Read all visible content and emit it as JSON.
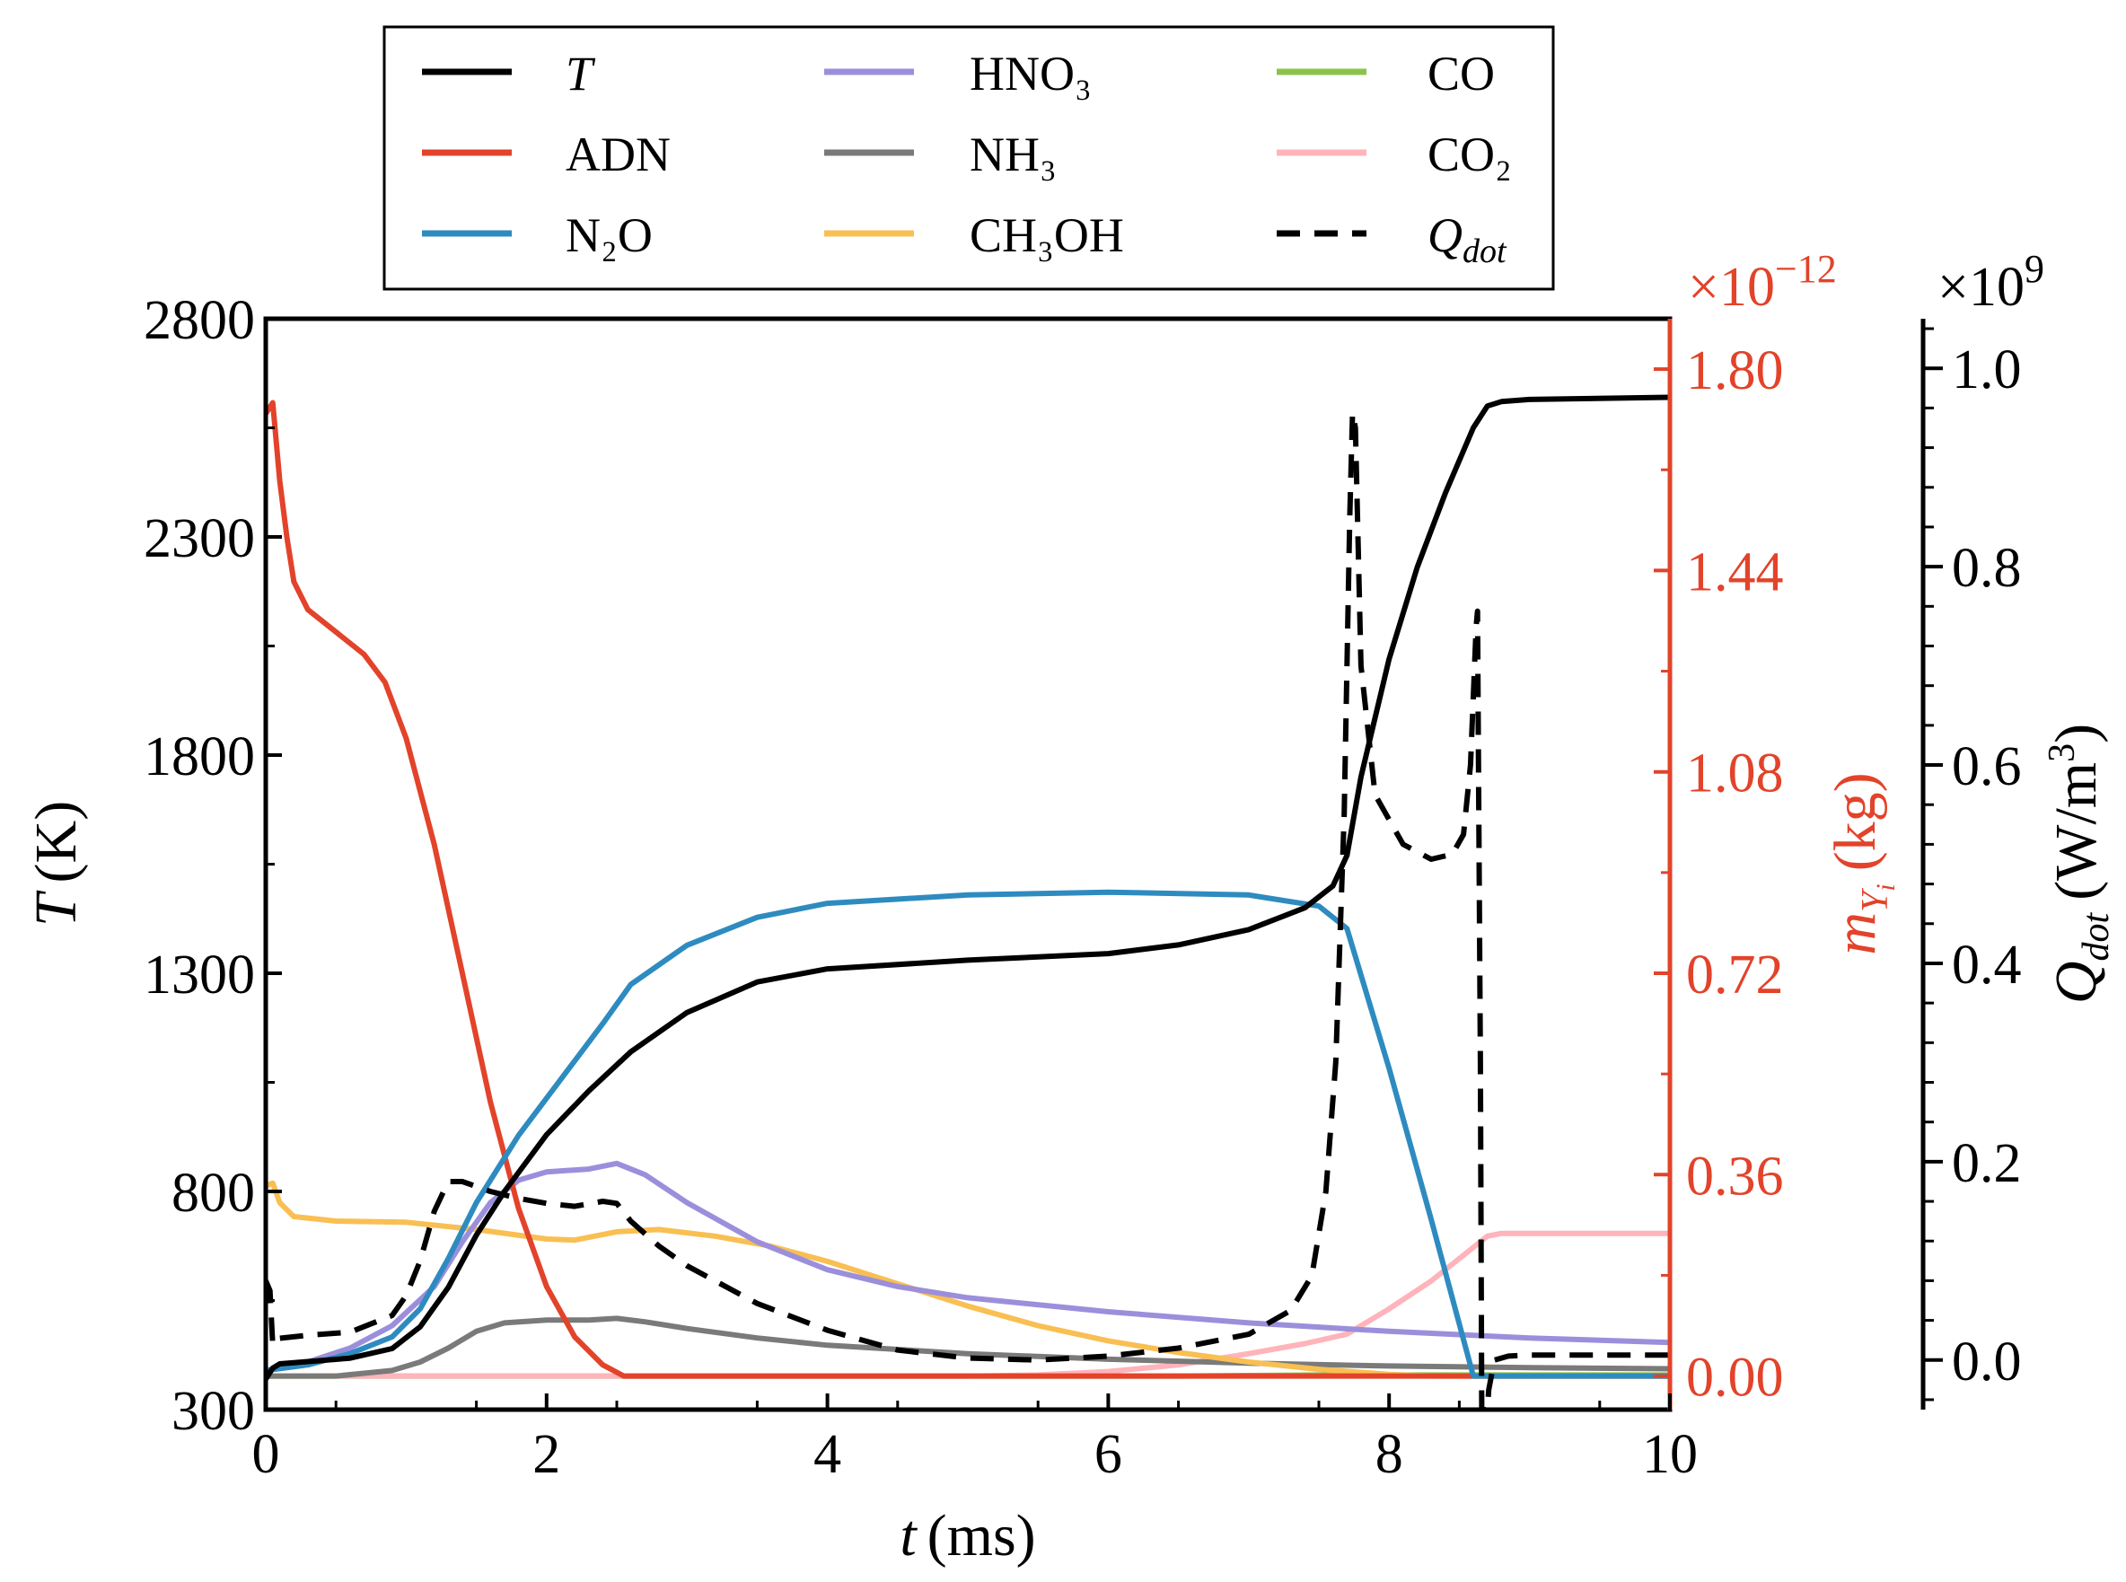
{
  "chart_data": {
    "type": "line",
    "xlabel_var": "t",
    "xlabel_unit": "(ms)",
    "ylabel_left_var": "T",
    "ylabel_left_unit": "(K)",
    "ylabel_mid_var": "m",
    "ylabel_mid_sub": "Y",
    "ylabel_mid_subsub": "i",
    "ylabel_mid_unit": "(kg)",
    "ylabel_right_var": "Q",
    "ylabel_right_sub": "dot",
    "ylabel_right_unit": "(W/m",
    "ylabel_right_sup": "3",
    "ylabel_right_close": ")",
    "multiplier_mid_base": "×10",
    "multiplier_mid_exp": "−12",
    "multiplier_right_base": "×10",
    "multiplier_right_exp": "9",
    "xlim": [
      0,
      10
    ],
    "ylim_left": [
      300,
      2800
    ],
    "ylim_mid": [
      -0.06,
      1.89
    ],
    "ylim_right": [
      -0.05,
      1.05
    ],
    "x_ticks": [
      "0",
      "2",
      "4",
      "6",
      "8",
      "10"
    ],
    "y_left_ticks": [
      "300",
      "800",
      "1300",
      "1800",
      "2300",
      "2800"
    ],
    "y_mid_ticks": [
      "0.00",
      "0.36",
      "0.72",
      "1.08",
      "1.44",
      "1.80"
    ],
    "y_right_ticks": [
      "0.0",
      "0.2",
      "0.4",
      "0.6",
      "0.8",
      "1.0"
    ],
    "colors": {
      "T": "#000000",
      "ADN": "#e2432a",
      "N2O": "#2e8bc0",
      "HNO3": "#9b8fdc",
      "NH3": "#7a7a7a",
      "CH3OH": "#f9bf52",
      "CO": "#8bc34a",
      "CO2": "#ffb3ba",
      "Qdot": "#000000",
      "mid_axis": "#e2432a"
    },
    "legend": [
      {
        "key": "T",
        "label": "T",
        "italic": true,
        "dashed": false
      },
      {
        "key": "ADN",
        "label": "ADN",
        "italic": false,
        "dashed": false
      },
      {
        "key": "N2O",
        "label": "N₂O",
        "italic": false,
        "dashed": false
      },
      {
        "key": "HNO3",
        "label": "HNO₃",
        "italic": false,
        "dashed": false
      },
      {
        "key": "NH3",
        "label": "NH₃",
        "italic": false,
        "dashed": false
      },
      {
        "key": "CH3OH",
        "label": "CH₃OH",
        "italic": false,
        "dashed": false
      },
      {
        "key": "CO",
        "label": "CO",
        "italic": false,
        "dashed": false
      },
      {
        "key": "CO2",
        "label": "CO₂",
        "italic": false,
        "dashed": false
      },
      {
        "key": "Qdot",
        "label": "Q",
        "label_sub": "dot",
        "italic": true,
        "dashed": true
      }
    ],
    "series": [
      {
        "name": "T",
        "axis": "left",
        "points": [
          [
            0,
            370
          ],
          [
            0.05,
            395
          ],
          [
            0.1,
            405
          ],
          [
            0.3,
            410
          ],
          [
            0.6,
            418
          ],
          [
            0.9,
            440
          ],
          [
            1.1,
            490
          ],
          [
            1.3,
            580
          ],
          [
            1.5,
            700
          ],
          [
            1.7,
            800
          ],
          [
            2.0,
            930
          ],
          [
            2.3,
            1030
          ],
          [
            2.6,
            1120
          ],
          [
            3.0,
            1210
          ],
          [
            3.5,
            1280
          ],
          [
            4.0,
            1310
          ],
          [
            5.0,
            1330
          ],
          [
            6.0,
            1345
          ],
          [
            6.5,
            1365
          ],
          [
            7.0,
            1400
          ],
          [
            7.4,
            1450
          ],
          [
            7.6,
            1500
          ],
          [
            7.7,
            1570
          ],
          [
            7.8,
            1750
          ],
          [
            8.0,
            2020
          ],
          [
            8.2,
            2230
          ],
          [
            8.4,
            2400
          ],
          [
            8.6,
            2550
          ],
          [
            8.7,
            2600
          ],
          [
            8.8,
            2610
          ],
          [
            9.0,
            2615
          ],
          [
            10.0,
            2620
          ]
        ]
      },
      {
        "name": "ADN",
        "axis": "mid",
        "points": [
          [
            0,
            1.72
          ],
          [
            0.05,
            1.74
          ],
          [
            0.1,
            1.6
          ],
          [
            0.15,
            1.5
          ],
          [
            0.2,
            1.42
          ],
          [
            0.3,
            1.37
          ],
          [
            0.5,
            1.33
          ],
          [
            0.7,
            1.29
          ],
          [
            0.85,
            1.24
          ],
          [
            1.0,
            1.14
          ],
          [
            1.2,
            0.95
          ],
          [
            1.4,
            0.72
          ],
          [
            1.6,
            0.49
          ],
          [
            1.8,
            0.3
          ],
          [
            2.0,
            0.16
          ],
          [
            2.2,
            0.07
          ],
          [
            2.4,
            0.02
          ],
          [
            2.55,
            0.0
          ],
          [
            10,
            0.0
          ]
        ]
      },
      {
        "name": "N2O",
        "axis": "mid",
        "points": [
          [
            0,
            0.01
          ],
          [
            0.3,
            0.02
          ],
          [
            0.6,
            0.04
          ],
          [
            0.9,
            0.07
          ],
          [
            1.1,
            0.12
          ],
          [
            1.3,
            0.21
          ],
          [
            1.5,
            0.31
          ],
          [
            1.8,
            0.43
          ],
          [
            2.1,
            0.53
          ],
          [
            2.4,
            0.63
          ],
          [
            2.6,
            0.7
          ],
          [
            3.0,
            0.77
          ],
          [
            3.5,
            0.82
          ],
          [
            4.0,
            0.845
          ],
          [
            5.0,
            0.86
          ],
          [
            6.0,
            0.865
          ],
          [
            7.0,
            0.86
          ],
          [
            7.5,
            0.84
          ],
          [
            7.7,
            0.8
          ],
          [
            8.0,
            0.55
          ],
          [
            8.3,
            0.28
          ],
          [
            8.6,
            0.0
          ],
          [
            10,
            0.0
          ]
        ]
      },
      {
        "name": "HNO3",
        "axis": "mid",
        "points": [
          [
            0,
            0.01
          ],
          [
            0.3,
            0.025
          ],
          [
            0.6,
            0.05
          ],
          [
            0.9,
            0.09
          ],
          [
            1.2,
            0.16
          ],
          [
            1.4,
            0.24
          ],
          [
            1.6,
            0.31
          ],
          [
            1.8,
            0.35
          ],
          [
            2.0,
            0.365
          ],
          [
            2.3,
            0.37
          ],
          [
            2.5,
            0.38
          ],
          [
            2.7,
            0.36
          ],
          [
            3.0,
            0.31
          ],
          [
            3.5,
            0.24
          ],
          [
            4.0,
            0.19
          ],
          [
            4.5,
            0.16
          ],
          [
            5.0,
            0.14
          ],
          [
            6.0,
            0.115
          ],
          [
            7.0,
            0.095
          ],
          [
            8.0,
            0.08
          ],
          [
            9.0,
            0.068
          ],
          [
            10.0,
            0.06
          ]
        ]
      },
      {
        "name": "NH3",
        "axis": "mid",
        "points": [
          [
            0,
            0.0
          ],
          [
            0.5,
            0.0
          ],
          [
            0.9,
            0.01
          ],
          [
            1.1,
            0.025
          ],
          [
            1.3,
            0.05
          ],
          [
            1.5,
            0.08
          ],
          [
            1.7,
            0.095
          ],
          [
            2.0,
            0.1
          ],
          [
            2.3,
            0.1
          ],
          [
            2.5,
            0.103
          ],
          [
            2.7,
            0.097
          ],
          [
            3.0,
            0.085
          ],
          [
            3.5,
            0.068
          ],
          [
            4.0,
            0.055
          ],
          [
            5.0,
            0.04
          ],
          [
            6.0,
            0.03
          ],
          [
            7.0,
            0.023
          ],
          [
            8.0,
            0.018
          ],
          [
            9.0,
            0.015
          ],
          [
            10.0,
            0.013
          ]
        ]
      },
      {
        "name": "CH3OH",
        "axis": "mid",
        "points": [
          [
            0,
            0.34
          ],
          [
            0.05,
            0.345
          ],
          [
            0.1,
            0.31
          ],
          [
            0.2,
            0.285
          ],
          [
            0.5,
            0.277
          ],
          [
            1.0,
            0.275
          ],
          [
            1.5,
            0.262
          ],
          [
            2.0,
            0.245
          ],
          [
            2.2,
            0.243
          ],
          [
            2.5,
            0.258
          ],
          [
            2.8,
            0.262
          ],
          [
            3.2,
            0.25
          ],
          [
            3.6,
            0.232
          ],
          [
            4.0,
            0.205
          ],
          [
            4.5,
            0.165
          ],
          [
            5.0,
            0.125
          ],
          [
            5.5,
            0.09
          ],
          [
            6.0,
            0.063
          ],
          [
            6.5,
            0.042
          ],
          [
            7.0,
            0.025
          ],
          [
            7.5,
            0.012
          ],
          [
            8.0,
            0.003
          ],
          [
            8.3,
            0.0
          ],
          [
            10,
            0.0
          ]
        ]
      },
      {
        "name": "CO",
        "axis": "mid",
        "points": [
          [
            0,
            0.0
          ],
          [
            6.0,
            0.0
          ],
          [
            6.5,
            0.0
          ],
          [
            7.0,
            0.001
          ],
          [
            7.5,
            0.002
          ],
          [
            8.0,
            0.002
          ],
          [
            10.0,
            0.002
          ]
        ]
      },
      {
        "name": "CO2",
        "axis": "mid",
        "points": [
          [
            0,
            0.0
          ],
          [
            5.0,
            0.0
          ],
          [
            5.5,
            0.002
          ],
          [
            6.0,
            0.008
          ],
          [
            6.5,
            0.02
          ],
          [
            7.0,
            0.04
          ],
          [
            7.4,
            0.058
          ],
          [
            7.7,
            0.075
          ],
          [
            8.0,
            0.12
          ],
          [
            8.3,
            0.17
          ],
          [
            8.5,
            0.21
          ],
          [
            8.7,
            0.25
          ],
          [
            8.8,
            0.255
          ],
          [
            10.0,
            0.255
          ]
        ]
      },
      {
        "name": "Qdot",
        "axis": "right",
        "points": [
          [
            0,
            0.08
          ],
          [
            0.03,
            0.07
          ],
          [
            0.05,
            0.015
          ],
          [
            0.1,
            0.022
          ],
          [
            0.3,
            0.025
          ],
          [
            0.6,
            0.028
          ],
          [
            0.9,
            0.045
          ],
          [
            1.0,
            0.065
          ],
          [
            1.1,
            0.1
          ],
          [
            1.2,
            0.15
          ],
          [
            1.3,
            0.18
          ],
          [
            1.4,
            0.18
          ],
          [
            1.6,
            0.17
          ],
          [
            1.8,
            0.163
          ],
          [
            2.0,
            0.158
          ],
          [
            2.2,
            0.155
          ],
          [
            2.4,
            0.16
          ],
          [
            2.5,
            0.158
          ],
          [
            2.6,
            0.14
          ],
          [
            2.8,
            0.115
          ],
          [
            3.0,
            0.095
          ],
          [
            3.5,
            0.057
          ],
          [
            4.0,
            0.03
          ],
          [
            4.5,
            0.01
          ],
          [
            5.0,
            0.002
          ],
          [
            5.5,
            0.0
          ],
          [
            6.0,
            0.004
          ],
          [
            6.5,
            0.012
          ],
          [
            7.0,
            0.026
          ],
          [
            7.3,
            0.05
          ],
          [
            7.45,
            0.085
          ],
          [
            7.55,
            0.17
          ],
          [
            7.62,
            0.3
          ],
          [
            7.68,
            0.55
          ],
          [
            7.72,
            0.85
          ],
          [
            7.74,
            0.955
          ],
          [
            7.76,
            0.94
          ],
          [
            7.8,
            0.7
          ],
          [
            7.9,
            0.57
          ],
          [
            8.1,
            0.52
          ],
          [
            8.3,
            0.505
          ],
          [
            8.45,
            0.51
          ],
          [
            8.53,
            0.53
          ],
          [
            8.58,
            0.6
          ],
          [
            8.62,
            0.74
          ],
          [
            8.63,
            0.755
          ],
          [
            8.65,
            0.3
          ],
          [
            8.66,
            -0.05
          ],
          [
            8.7,
            -0.05
          ],
          [
            8.71,
            -0.03
          ],
          [
            8.75,
            0.0
          ],
          [
            8.85,
            0.004
          ],
          [
            9.0,
            0.005
          ],
          [
            10.0,
            0.005
          ]
        ]
      }
    ]
  }
}
